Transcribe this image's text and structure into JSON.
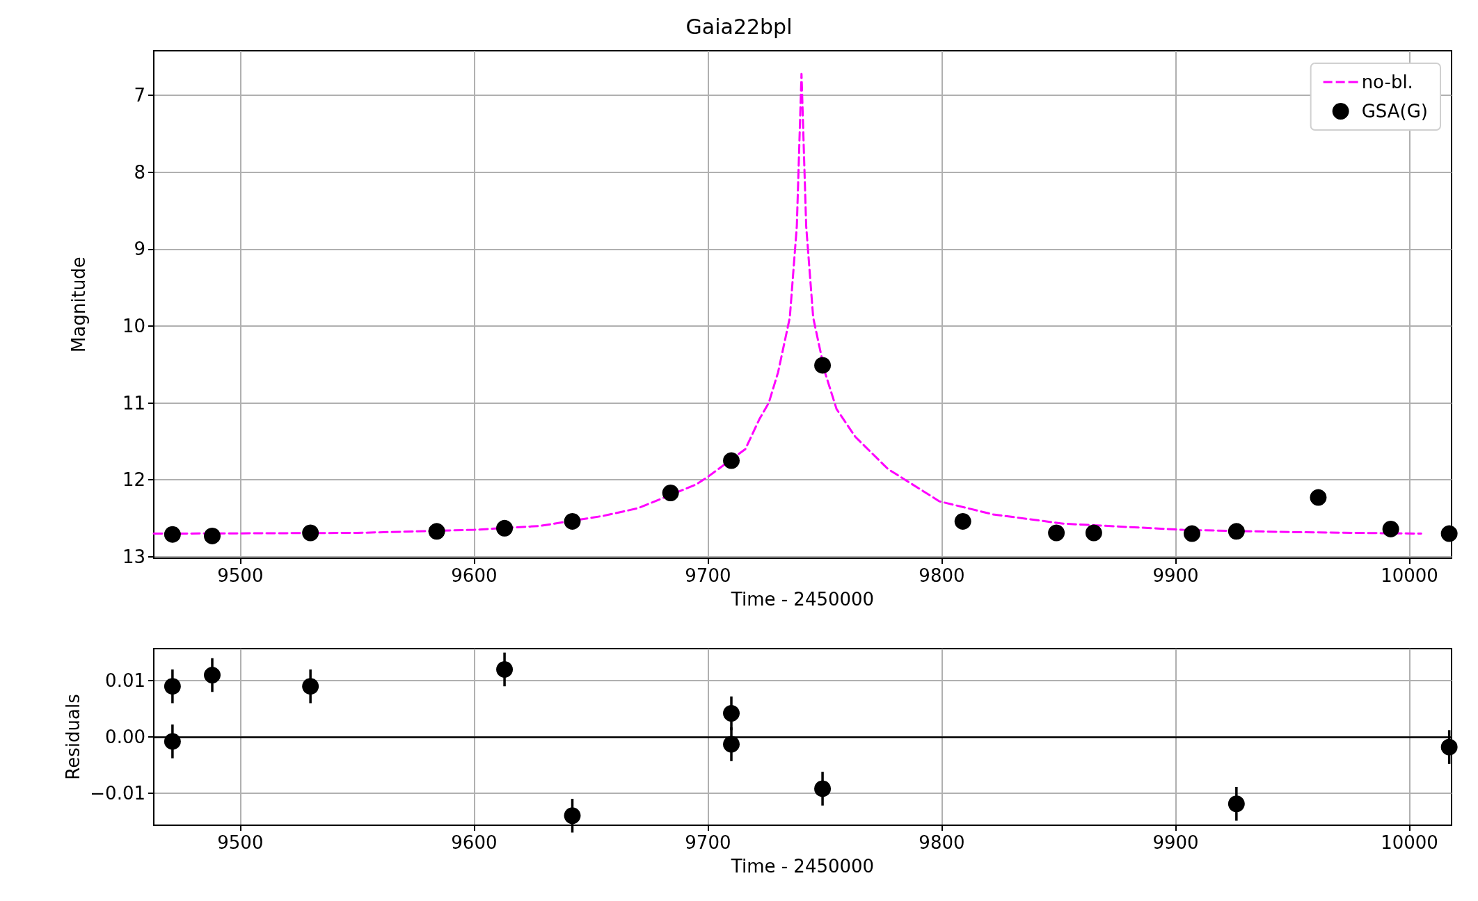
{
  "chart_data": [
    {
      "type": "scatter",
      "title": "Gaia22bpl",
      "xlabel": "Time - 2450000",
      "ylabel": "Magnitude",
      "xlim": [
        9463,
        10018
      ],
      "xticks": [
        9500,
        9600,
        9700,
        9800,
        9900,
        10000
      ],
      "ylim": [
        13.02,
        6.42
      ],
      "yticks": [
        7,
        8,
        9,
        10,
        11,
        12,
        13
      ],
      "grid": true,
      "legend": "top right",
      "series": [
        {
          "name": "no-bl.",
          "type": "line",
          "color": "#ff00ff",
          "line_style": "dashed",
          "marker": "none",
          "x": [
            9463,
            9550,
            9600,
            9628,
            9655,
            9670,
            9695,
            9700,
            9716,
            9722,
            9726,
            9730,
            9735,
            9738,
            9740,
            9742,
            9745,
            9750,
            9755,
            9763,
            9777,
            9799,
            9822,
            9852,
            9903,
            9950,
            10005
          ],
          "values": [
            12.7,
            12.69,
            12.65,
            12.6,
            12.47,
            12.37,
            12.06,
            11.96,
            11.6,
            11.21,
            11.0,
            10.6,
            9.89,
            8.7,
            6.72,
            8.7,
            9.89,
            10.6,
            11.08,
            11.44,
            11.86,
            12.28,
            12.45,
            12.57,
            12.65,
            12.68,
            12.7
          ]
        },
        {
          "name": "GSA(G)",
          "type": "scatter",
          "color": "#000000",
          "marker": "circle",
          "x": [
            9471,
            9488,
            9530,
            9584,
            9613,
            9642,
            9684,
            9710,
            9749,
            9809,
            9849,
            9865,
            9907,
            9926,
            9961,
            9992,
            10017
          ],
          "values": [
            12.71,
            12.73,
            12.69,
            12.67,
            12.63,
            12.54,
            12.17,
            11.75,
            10.51,
            12.54,
            12.69,
            12.69,
            12.7,
            12.67,
            12.23,
            12.64,
            12.7
          ]
        }
      ]
    },
    {
      "type": "scatter",
      "xlabel": "Time - 2450000",
      "ylabel": "Residuals",
      "xlim": [
        9463,
        10018
      ],
      "xticks": [
        9500,
        9600,
        9700,
        9800,
        9900,
        10000
      ],
      "ylim": [
        -0.0157,
        0.0157
      ],
      "yticks": [
        {
          "value": -0.01,
          "label": "−0.01"
        },
        {
          "value": 0,
          "label": "0.00"
        },
        {
          "value": 0.01,
          "label": "0.01"
        }
      ],
      "grid": true,
      "ref_lines": [
        {
          "axis": "y",
          "value": 0,
          "color": "#000000"
        }
      ],
      "series": [
        {
          "type": "scatter",
          "color": "#000000",
          "marker": "circle",
          "x": [
            9471,
            9471,
            9488,
            9530,
            9613,
            9642,
            9710,
            9710,
            9749,
            9926,
            10017
          ],
          "values": [
            0.009,
            -0.0008,
            0.011,
            0.009,
            0.012,
            -0.014,
            0.0042,
            -0.0013,
            -0.0092,
            -0.0119,
            -0.0018
          ],
          "errors": [
            0.003,
            0.003,
            0.003,
            0.003,
            0.003,
            0.003,
            0.003,
            0.003,
            0.003,
            0.003,
            0.003
          ]
        }
      ]
    }
  ]
}
